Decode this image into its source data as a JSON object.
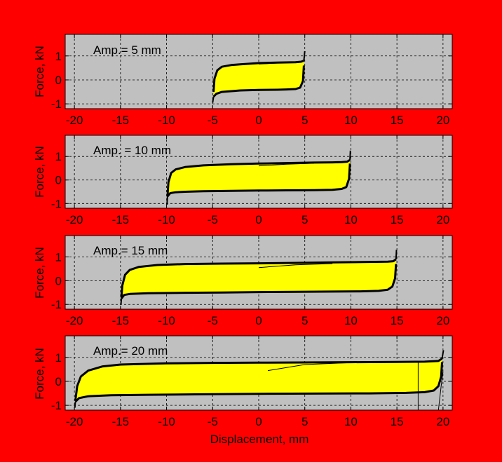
{
  "figure": {
    "background": "#ff0000",
    "plot_background": "#c0c0c0",
    "fill_color": "#ffff00",
    "line_color": "#000000"
  },
  "chart_data": [
    {
      "type": "line",
      "annotation": "Amp.= 5 mm",
      "ylabel": "Force, kN",
      "xlabel": "",
      "xlim": [
        -21,
        21
      ],
      "ylim": [
        -1.2,
        1.9
      ],
      "xticks": [
        -20,
        -15,
        -10,
        -5,
        0,
        5,
        10,
        15,
        20
      ],
      "xtick_labels": [
        "-20",
        "-15",
        "-10",
        "-5",
        "0",
        "5",
        "10",
        "15",
        "20"
      ],
      "yticks": [
        -1,
        0,
        1
      ],
      "ytick_labels": [
        "-1",
        "0",
        "1"
      ],
      "grid": true,
      "amplitude_mm": 5,
      "loop": {
        "upper": {
          "x": [
            -4.9,
            -4.8,
            -4.5,
            -4.0,
            -3.0,
            -2.0,
            0,
            2.0,
            4.0,
            4.6,
            4.9
          ],
          "y": [
            -0.5,
            0.05,
            0.4,
            0.55,
            0.62,
            0.65,
            0.7,
            0.72,
            0.74,
            0.76,
            0.8
          ]
        },
        "lower": {
          "x": [
            4.9,
            4.8,
            4.5,
            4.0,
            3.0,
            2.0,
            0,
            -2.0,
            -4.0,
            -4.6,
            -4.9
          ],
          "y": [
            0.6,
            -0.05,
            -0.32,
            -0.38,
            -0.4,
            -0.41,
            -0.42,
            -0.44,
            -0.5,
            -0.58,
            -0.7
          ]
        },
        "spike_high": [
          5.0,
          1.2
        ],
        "spike_low": [
          -5.0,
          -0.95
        ],
        "initial_loading": {
          "x": [
            0,
            2,
            4
          ],
          "y": [
            0.66,
            0.7,
            0.73
          ]
        }
      }
    },
    {
      "type": "line",
      "annotation": "Amp. = 10 mm",
      "ylabel": "Force, kN",
      "xlabel": "",
      "xlim": [
        -21,
        21
      ],
      "ylim": [
        -1.2,
        1.9
      ],
      "xticks": [
        -20,
        -15,
        -10,
        -5,
        0,
        5,
        10,
        15,
        20
      ],
      "xtick_labels": [
        "-20",
        "-15",
        "-10",
        "-5",
        "0",
        "5",
        "10",
        "15",
        "20"
      ],
      "yticks": [
        -1,
        0,
        1
      ],
      "ytick_labels": [
        "-1",
        "0",
        "1"
      ],
      "grid": true,
      "amplitude_mm": 10,
      "loop": {
        "upper": {
          "x": [
            -9.9,
            -9.8,
            -9.5,
            -9.0,
            -8.0,
            -6.0,
            -3.0,
            0,
            3.0,
            6.0,
            8.0,
            9.0,
            9.6,
            9.9
          ],
          "y": [
            -0.7,
            -0.1,
            0.3,
            0.45,
            0.55,
            0.62,
            0.67,
            0.7,
            0.72,
            0.74,
            0.75,
            0.76,
            0.78,
            0.85
          ]
        },
        "lower": {
          "x": [
            9.9,
            9.8,
            9.5,
            9.0,
            8.0,
            6.0,
            3.0,
            0,
            -3.0,
            -6.0,
            -8.0,
            -9.0,
            -9.6,
            -9.9
          ],
          "y": [
            0.7,
            0.05,
            -0.3,
            -0.38,
            -0.42,
            -0.43,
            -0.44,
            -0.45,
            -0.46,
            -0.48,
            -0.5,
            -0.52,
            -0.56,
            -0.7
          ]
        },
        "spike_high": [
          9.95,
          1.25
        ],
        "spike_low": [
          -9.95,
          -1.05
        ],
        "initial_loading": {
          "x": [
            0,
            3,
            6
          ],
          "y": [
            0.6,
            0.67,
            0.71
          ]
        }
      }
    },
    {
      "type": "line",
      "annotation": "Amp.= 15 mm",
      "ylabel": "Force, kN",
      "xlabel": "",
      "xlim": [
        -21,
        21
      ],
      "ylim": [
        -1.2,
        1.9
      ],
      "xticks": [
        -20,
        -15,
        -10,
        -5,
        0,
        5,
        10,
        15,
        20
      ],
      "xtick_labels": [
        "-20",
        "-15",
        "-10",
        "-5",
        "0",
        "5",
        "10",
        "15",
        "20"
      ],
      "yticks": [
        -1,
        0,
        1
      ],
      "ytick_labels": [
        "-1",
        "0",
        "1"
      ],
      "grid": true,
      "amplitude_mm": 15,
      "loop": {
        "upper": {
          "x": [
            -14.9,
            -14.8,
            -14.5,
            -14.0,
            -13.0,
            -11.0,
            -8.0,
            -4.0,
            0,
            4.0,
            8.0,
            12.0,
            14.0,
            14.6,
            14.9
          ],
          "y": [
            -0.7,
            -0.2,
            0.25,
            0.45,
            0.58,
            0.66,
            0.7,
            0.72,
            0.73,
            0.75,
            0.77,
            0.79,
            0.8,
            0.82,
            0.9
          ]
        },
        "lower": {
          "x": [
            14.9,
            14.8,
            14.5,
            14.0,
            13.0,
            11.0,
            8.0,
            4.0,
            0,
            -4.0,
            -8.0,
            -12.0,
            -14.0,
            -14.6,
            -14.9
          ],
          "y": [
            0.7,
            0.1,
            -0.25,
            -0.38,
            -0.43,
            -0.45,
            -0.46,
            -0.47,
            -0.48,
            -0.5,
            -0.51,
            -0.53,
            -0.56,
            -0.6,
            -0.75
          ]
        },
        "spike_high": [
          14.95,
          1.3
        ],
        "spike_low": [
          -14.95,
          -1.0
        ],
        "initial_loading": {
          "x": [
            0,
            4,
            8
          ],
          "y": [
            0.55,
            0.67,
            0.72
          ]
        }
      }
    },
    {
      "type": "line",
      "annotation": "Amp.= 20 mm",
      "ylabel": "Force, kN",
      "xlabel": "Displacement, mm",
      "xlim": [
        -21,
        21
      ],
      "ylim": [
        -1.2,
        1.9
      ],
      "xticks": [
        -20,
        -15,
        -10,
        -5,
        0,
        5,
        10,
        15,
        20
      ],
      "xtick_labels": [
        "-20",
        "-15",
        "-10",
        "-5",
        "0",
        "5",
        "10",
        "15",
        "20"
      ],
      "yticks": [
        -1,
        0,
        1
      ],
      "ytick_labels": [
        "-1",
        "0",
        "1"
      ],
      "grid": true,
      "amplitude_mm": 20,
      "loop": {
        "upper": {
          "x": [
            -19.9,
            -19.7,
            -19.3,
            -18.5,
            -17.0,
            -15.0,
            -10.0,
            -5.0,
            0,
            5.0,
            10.0,
            15.0,
            18.0,
            19.5,
            19.9
          ],
          "y": [
            -0.8,
            -0.2,
            0.2,
            0.45,
            0.62,
            0.7,
            0.75,
            0.77,
            0.78,
            0.79,
            0.8,
            0.81,
            0.82,
            0.85,
            0.95
          ]
        },
        "lower": {
          "x": [
            19.9,
            19.8,
            19.5,
            19.0,
            18.0,
            16.0,
            12.0,
            6.0,
            0,
            -6.0,
            -12.0,
            -16.0,
            -18.5,
            -19.5,
            -19.9
          ],
          "y": [
            0.8,
            0.2,
            -0.2,
            -0.38,
            -0.45,
            -0.48,
            -0.5,
            -0.51,
            -0.52,
            -0.54,
            -0.56,
            -0.58,
            -0.62,
            -0.7,
            -0.85
          ]
        },
        "spike_high": [
          20.05,
          1.3
        ],
        "spike_low": [
          -19.95,
          -1.1
        ],
        "initial_loading": {
          "x": [
            1,
            5,
            10
          ],
          "y": [
            0.45,
            0.7,
            0.78
          ]
        },
        "extra_traces": [
          {
            "x": [
              17.3,
              17.3
            ],
            "y": [
              0.85,
              -1.2
            ]
          },
          {
            "x": [
              19.5,
              19.8,
              20.0
            ],
            "y": [
              -1.2,
              -0.2,
              0.4
            ]
          }
        ]
      }
    }
  ]
}
